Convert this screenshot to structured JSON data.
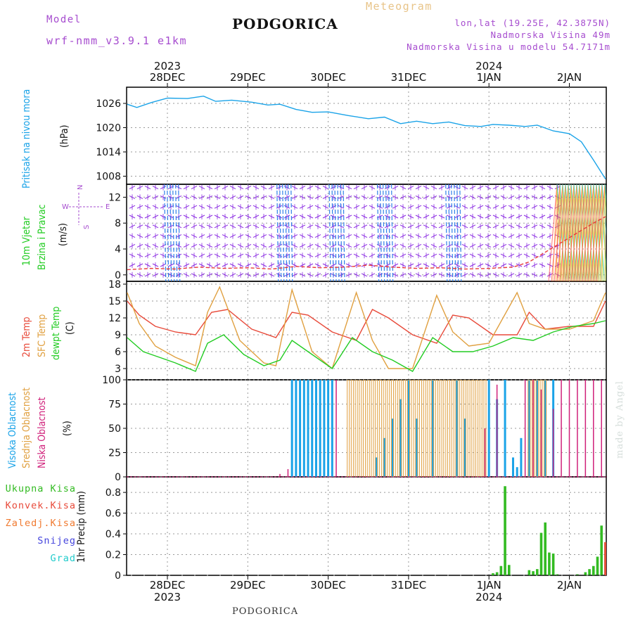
{
  "header": {
    "model_label": "Model",
    "model_name": "wrf-nmm_v3.9.1  e1km",
    "city": "PODGORICA",
    "meteogram": "Meteogram",
    "coords": "lon,lat (19.25E, 42.3875N)",
    "altitude": "Nadmorska Visina 49m",
    "model_altitude": "Nadmorska Visina u modelu 54.7171m"
  },
  "top_axis": {
    "years": [
      {
        "label": "2023",
        "day": 0
      },
      {
        "label": "2024",
        "day": 4
      }
    ],
    "days": [
      "28DEC",
      "29DEC",
      "30DEC",
      "31DEC",
      "1JAN",
      "2JAN"
    ]
  },
  "bottom_axis": {
    "days": [
      "28DEC",
      "29DEC",
      "30DEC",
      "31DEC",
      "1JAN",
      "2JAN"
    ],
    "years": [
      {
        "label": "2023",
        "day": 0
      },
      {
        "label": "2024",
        "day": 4
      }
    ]
  },
  "footer": "PODGORICA",
  "made_by": "made by Angel",
  "colors": {
    "pressure": "#1aa3e8",
    "wind_speed": "#e83a3a",
    "wind_barb": "#8a2be2",
    "wind_barb2": "#2f7fe8",
    "t2m": "#e84a3a",
    "sfc": "#e0a040",
    "dewpt": "#22cc22",
    "high_cloud": "#1aa3e8",
    "mid_cloud": "#e0a040",
    "low_cloud": "#d0207a",
    "total_rain": "#33bb22",
    "conv_rain": "#e84a3a",
    "frz_rain": "#f07a30",
    "snow": "#4444dd",
    "hail": "#22cccc",
    "grid": "#999999"
  },
  "panels": {
    "pressure": {
      "labels": [
        "Pritisak na nivou mora",
        "(hPa)"
      ]
    },
    "wind": {
      "labels": [
        "10m Vjetar",
        "Brzina i Pravac",
        "(m/s)"
      ],
      "compass": "N",
      "west": "W",
      "east": "E",
      "south": "S"
    },
    "temp": {
      "labels": [
        "2m Temp",
        "SFC Temp",
        "dewpt Temp",
        "(C)"
      ]
    },
    "cloud": {
      "labels": [
        "Visoka Oblacnost",
        "Srednja Oblacnost",
        "Niska Oblacnost",
        "(%)"
      ]
    },
    "precip": {
      "labels": [
        "1hr Precip (mm)"
      ],
      "legend": [
        "Ukupna Kisa",
        "Konvek.Kisa",
        "Zaledj.Kisa",
        "Snijeg",
        "Grad"
      ]
    }
  },
  "chart_data": [
    {
      "type": "line",
      "title": "",
      "ylabel": "Pritisak na nivou mora (hPa)",
      "x_unit": "days since 27DEC 12:00 (tick = 00 UTC of labelled day)",
      "ylim": [
        1006,
        1030
      ],
      "yticks": [
        1008,
        1014,
        1020,
        1026
      ],
      "series": [
        {
          "name": "Pritisak na nivou mora",
          "x": [
            0,
            0.12,
            0.3,
            0.5,
            0.75,
            0.95,
            1.1,
            1.3,
            1.55,
            1.75,
            1.9,
            2.1,
            2.3,
            2.5,
            2.75,
            3.0,
            3.2,
            3.4,
            3.6,
            3.8,
            4.0,
            4.2,
            4.4,
            4.55,
            4.75,
            4.95,
            5.1,
            5.3,
            5.5,
            5.65,
            5.8,
            5.95
          ],
          "values": [
            1025.8,
            1025.0,
            1026.2,
            1027.3,
            1027.2,
            1027.8,
            1026.5,
            1026.8,
            1026.3,
            1025.6,
            1025.8,
            1024.5,
            1023.8,
            1023.9,
            1023.0,
            1022.2,
            1022.6,
            1021.0,
            1021.6,
            1021.0,
            1021.4,
            1020.5,
            1020.3,
            1020.8,
            1020.6,
            1020.3,
            1020.6,
            1019.2,
            1018.5,
            1016.5,
            1012.0,
            1007.3
          ]
        }
      ]
    },
    {
      "type": "line",
      "title": "",
      "ylabel": "10m Vjetar Brzina i Pravac (m/s)",
      "ylim": [
        -1,
        14
      ],
      "yticks": [
        0,
        4,
        8,
        12
      ],
      "series": [
        {
          "name": "10m Vjetar",
          "x": [
            0,
            0.3,
            0.6,
            0.9,
            1.2,
            1.5,
            1.8,
            2.1,
            2.4,
            2.7,
            3.0,
            3.3,
            3.6,
            3.9,
            4.2,
            4.5,
            4.8,
            5.0,
            5.2,
            5.4,
            5.6,
            5.8,
            5.95
          ],
          "values": [
            0.8,
            1.0,
            0.9,
            1.2,
            1.0,
            1.1,
            0.9,
            1.3,
            1.1,
            1.2,
            1.5,
            1.2,
            1.0,
            1.1,
            0.9,
            1.0,
            1.2,
            2.0,
            3.5,
            5.0,
            6.5,
            8.0,
            9.0
          ]
        }
      ]
    },
    {
      "type": "line",
      "title": "",
      "ylabel": "(C)",
      "ylim": [
        1,
        18.5
      ],
      "yticks": [
        3,
        6,
        9,
        12,
        15,
        18
      ],
      "series": [
        {
          "name": "2m Temp",
          "x": [
            0,
            0.15,
            0.35,
            0.6,
            0.85,
            1.05,
            1.25,
            1.55,
            1.85,
            2.05,
            2.25,
            2.55,
            2.85,
            3.05,
            3.25,
            3.55,
            3.85,
            4.05,
            4.25,
            4.55,
            4.85,
            5.0,
            5.2,
            5.5,
            5.8,
            5.95
          ],
          "values": [
            15.0,
            12.5,
            10.5,
            9.5,
            9.0,
            13.0,
            13.5,
            10.0,
            8.5,
            13.0,
            12.5,
            9.5,
            8.0,
            13.5,
            12.0,
            9.0,
            7.5,
            12.5,
            12.0,
            9.0,
            9.0,
            13.0,
            10.0,
            10.5,
            10.5,
            15.0
          ]
        },
        {
          "name": "SFC Temp",
          "x": [
            0,
            0.15,
            0.35,
            0.6,
            0.85,
            1.0,
            1.15,
            1.4,
            1.7,
            1.85,
            2.05,
            2.3,
            2.55,
            2.85,
            3.05,
            3.25,
            3.55,
            3.85,
            4.05,
            4.25,
            4.5,
            4.85,
            5.0,
            5.2,
            5.5,
            5.8,
            5.95
          ],
          "values": [
            16.5,
            11.0,
            7.0,
            5.0,
            3.5,
            13.0,
            17.5,
            8.0,
            4.0,
            3.5,
            17.0,
            6.0,
            3.0,
            16.5,
            8.0,
            3.0,
            3.0,
            16.0,
            9.5,
            7.0,
            7.5,
            16.5,
            11.0,
            10.0,
            10.0,
            11.5,
            16.5
          ]
        },
        {
          "name": "dewpt Temp",
          "x": [
            0,
            0.2,
            0.4,
            0.6,
            0.85,
            1.0,
            1.2,
            1.45,
            1.7,
            1.9,
            2.05,
            2.3,
            2.55,
            2.8,
            3.05,
            3.3,
            3.55,
            3.8,
            4.05,
            4.3,
            4.55,
            4.8,
            5.05,
            5.3,
            5.55,
            5.8,
            5.95
          ],
          "values": [
            8.5,
            6.0,
            5.0,
            4.0,
            2.5,
            7.5,
            9.0,
            5.5,
            3.5,
            4.5,
            8.0,
            5.5,
            3.0,
            8.5,
            6.0,
            4.5,
            2.5,
            8.5,
            6.0,
            6.0,
            7.0,
            8.5,
            8.0,
            9.5,
            10.5,
            11.0,
            11.5
          ]
        }
      ]
    },
    {
      "type": "bar",
      "title": "",
      "ylabel": "(%)",
      "ylim": [
        0,
        100
      ],
      "yticks": [
        0,
        25,
        50,
        75,
        100
      ],
      "series": [
        {
          "name": "Visoka Oblacnost",
          "x": [
            2.05,
            2.1,
            2.15,
            2.2,
            2.25,
            2.3,
            2.35,
            2.4,
            2.45,
            2.5,
            2.55,
            3.1,
            3.2,
            3.3,
            3.4,
            3.5,
            3.6,
            3.8,
            4.1,
            4.2,
            4.5,
            4.6,
            4.7,
            4.8,
            4.85,
            4.9,
            5.0,
            5.1,
            5.2,
            5.3
          ],
          "values": [
            100,
            100,
            100,
            100,
            100,
            100,
            100,
            100,
            100,
            100,
            100,
            20,
            40,
            60,
            80,
            100,
            60,
            100,
            100,
            60,
            100,
            80,
            100,
            20,
            10,
            40,
            100,
            100,
            100,
            100
          ]
        },
        {
          "name": "Srednja Oblacnost",
          "x": [
            2.75,
            2.8,
            2.85,
            2.9,
            2.95,
            3.0,
            3.05,
            3.1,
            3.15,
            3.2,
            3.25,
            3.3,
            3.35,
            3.4,
            3.45,
            3.5,
            3.55,
            3.6,
            3.65,
            3.7,
            3.75,
            3.8,
            3.85,
            3.9,
            3.95,
            4.0,
            4.05,
            4.1,
            4.15,
            4.2,
            4.25,
            4.3,
            4.35,
            4.4,
            4.45,
            5.0,
            5.05,
            5.1,
            5.15,
            5.2
          ],
          "values": [
            100,
            100,
            100,
            100,
            100,
            100,
            100,
            100,
            100,
            100,
            100,
            100,
            100,
            100,
            100,
            100,
            100,
            100,
            100,
            100,
            100,
            100,
            100,
            100,
            100,
            100,
            100,
            100,
            100,
            100,
            100,
            100,
            100,
            100,
            100,
            100,
            100,
            100,
            100,
            100
          ]
        },
        {
          "name": "Niska Oblacnost",
          "x": [
            1.9,
            2.0,
            2.6,
            4.45,
            4.6,
            4.95,
            5.05,
            5.15,
            5.3,
            5.4,
            5.5,
            5.6,
            5.7,
            5.8,
            5.9
          ],
          "values": [
            3,
            8,
            100,
            50,
            95,
            100,
            100,
            90,
            70,
            100,
            100,
            100,
            100,
            100,
            100
          ]
        }
      ]
    },
    {
      "type": "bar",
      "title": "",
      "ylabel": "1hr Precip (mm)",
      "ylim": [
        0,
        0.95
      ],
      "yticks": [
        0,
        0.2,
        0.4,
        0.6,
        0.8
      ],
      "series": [
        {
          "name": "Ukupna Kisa",
          "x": [
            4.55,
            4.6,
            4.65,
            4.7,
            4.75,
            5.0,
            5.05,
            5.1,
            5.15,
            5.2,
            5.25,
            5.3,
            5.35,
            5.6,
            5.7,
            5.75,
            5.8,
            5.85,
            5.9,
            5.95
          ],
          "values": [
            0.02,
            0.03,
            0.09,
            0.86,
            0.1,
            0.05,
            0.04,
            0.06,
            0.41,
            0.51,
            0.22,
            0.21,
            0.01,
            0.01,
            0.03,
            0.06,
            0.09,
            0.18,
            0.48,
            0.32
          ]
        },
        {
          "name": "Konvek.Kisa",
          "x": [
            5.95
          ],
          "values": [
            0.32
          ]
        }
      ]
    }
  ]
}
